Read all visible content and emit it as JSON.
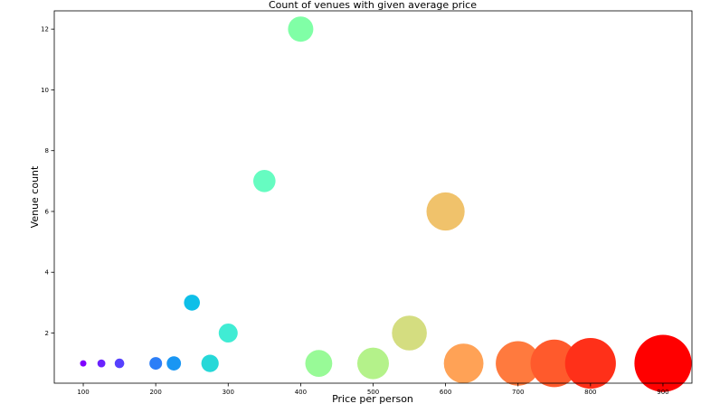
{
  "chart_data": {
    "type": "scatter",
    "title": "Count of venues with given average price",
    "xlabel": "Price per person",
    "ylabel": "Venue count",
    "xlim": [
      60,
      940
    ],
    "ylim": [
      0.35,
      12.6
    ],
    "xticks": [
      100,
      200,
      300,
      400,
      500,
      600,
      700,
      800,
      900
    ],
    "yticks": [
      2,
      4,
      6,
      8,
      10,
      12
    ],
    "grid": false,
    "points": [
      {
        "x": 100,
        "y": 1,
        "color": "#8000ff"
      },
      {
        "x": 125,
        "y": 1,
        "color": "#6a23fe"
      },
      {
        "x": 150,
        "y": 1,
        "color": "#5641fd"
      },
      {
        "x": 200,
        "y": 1,
        "color": "#2c7ef7"
      },
      {
        "x": 225,
        "y": 1,
        "color": "#1996f3"
      },
      {
        "x": 250,
        "y": 3,
        "color": "#0ebfe8"
      },
      {
        "x": 275,
        "y": 1,
        "color": "#26d8d8"
      },
      {
        "x": 300,
        "y": 2,
        "color": "#40ecd4"
      },
      {
        "x": 350,
        "y": 7,
        "color": "#66fcc1"
      },
      {
        "x": 400,
        "y": 12,
        "color": "#80ffa6"
      },
      {
        "x": 425,
        "y": 1,
        "color": "#98fa97"
      },
      {
        "x": 500,
        "y": 1,
        "color": "#b4f28a"
      },
      {
        "x": 550,
        "y": 2,
        "color": "#d4dd80"
      },
      {
        "x": 600,
        "y": 6,
        "color": "#f0c26b"
      },
      {
        "x": 625,
        "y": 1,
        "color": "#ffa256"
      },
      {
        "x": 700,
        "y": 1,
        "color": "#ff7a3e"
      },
      {
        "x": 750,
        "y": 1,
        "color": "#ff5a2c"
      },
      {
        "x": 800,
        "y": 1,
        "color": "#ff3019"
      },
      {
        "x": 900,
        "y": 1,
        "color": "#ff0000"
      }
    ]
  }
}
